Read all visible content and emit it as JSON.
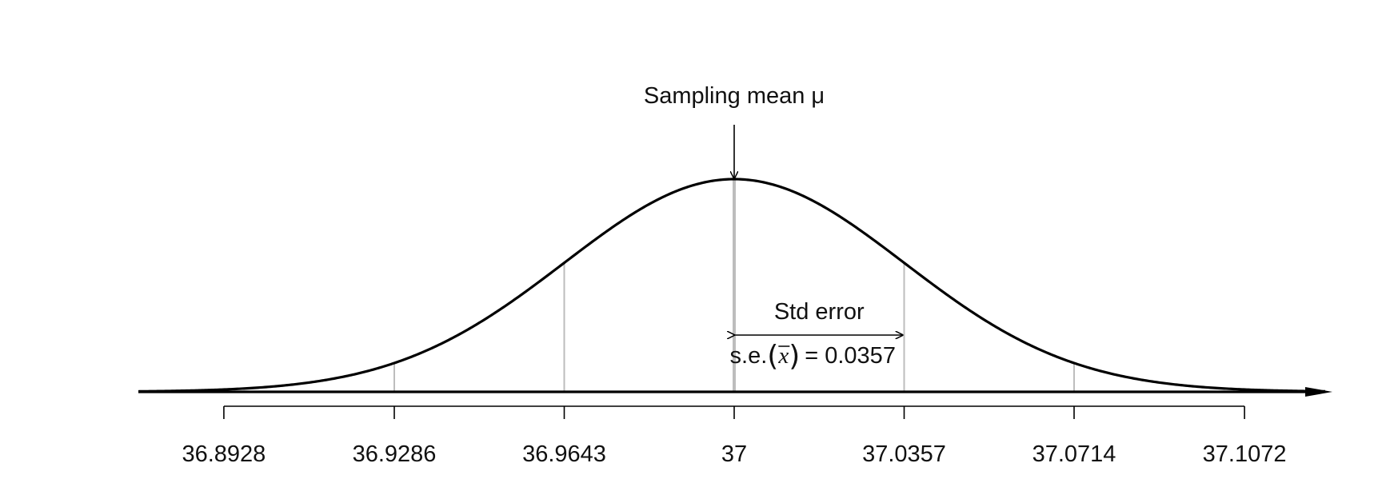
{
  "chart_data": {
    "type": "line",
    "distribution": "normal",
    "mean": 37,
    "std_error": 0.0357,
    "x_ticks": [
      36.8928,
      36.9286,
      36.9643,
      37,
      37.0357,
      37.0714,
      37.1072
    ],
    "x_tick_labels": [
      "36.8928",
      "36.9286",
      "36.9643",
      "37",
      "37.0357",
      "37.0714",
      "37.1072"
    ],
    "grid": false,
    "annotations": {
      "mean_label": "Sampling mean μ",
      "se_title": "Std error",
      "se_prefix": "s.e.",
      "se_symbol": "x",
      "se_value_text": "= 0.0357"
    },
    "colors": {
      "curve": "#000000",
      "guide_lines": "#bdbdbd",
      "axis": "#000000",
      "text": "#111111"
    }
  }
}
